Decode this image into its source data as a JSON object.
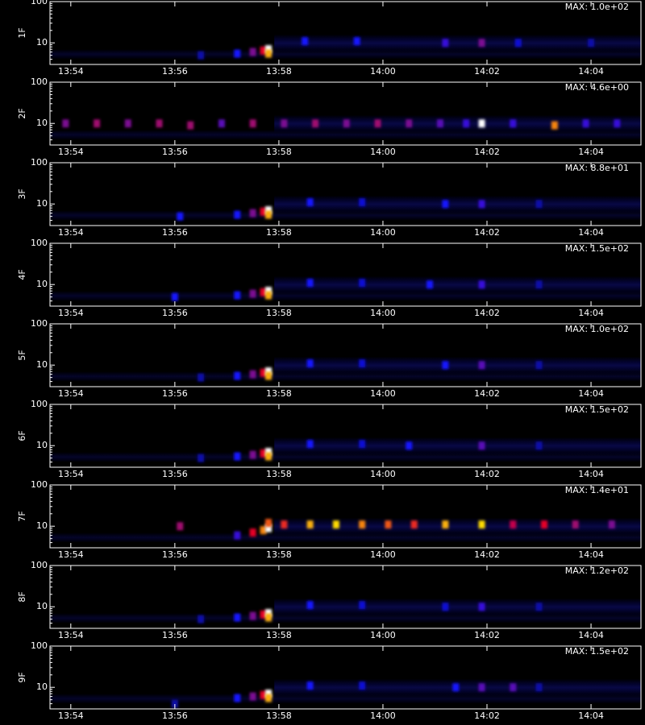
{
  "chart_data": [
    {
      "type": "heatmap",
      "ylabel": "1F",
      "annotation": "MAX: 1.0e+02",
      "ylog": true,
      "ylim": [
        3,
        100
      ],
      "yticks": [
        10,
        100
      ],
      "xlim": [
        833.6,
        844.96
      ],
      "xticks": [
        {
          "value": 834,
          "label": "13:54"
        },
        {
          "value": 836,
          "label": "13:56"
        },
        {
          "value": 838,
          "label": "13:58"
        },
        {
          "value": 840,
          "label": "14:00"
        },
        {
          "value": 842,
          "label": "14:02"
        },
        {
          "value": 844,
          "label": "14:04"
        }
      ],
      "x": [
        836.5,
        837.2,
        837.5,
        837.7,
        837.8,
        837.8,
        838.5,
        839.5,
        841.2,
        841.9,
        842.6,
        844.0
      ],
      "y": [
        5,
        5.5,
        6,
        6.5,
        7,
        5.5,
        11,
        11,
        10,
        10,
        10,
        10
      ],
      "values": [
        0.2,
        0.3,
        0.45,
        0.6,
        1,
        0.8,
        0.3,
        0.3,
        0.35,
        0.45,
        0.25,
        0.2
      ]
    },
    {
      "type": "heatmap",
      "ylabel": "2F",
      "annotation": "MAX: 4.6e+00",
      "ylog": true,
      "ylim": [
        3,
        100
      ],
      "yticks": [
        10,
        100
      ],
      "xlim": [
        833.6,
        844.96
      ],
      "xticks": [
        {
          "value": 834,
          "label": "13:54"
        },
        {
          "value": 836,
          "label": "13:56"
        },
        {
          "value": 838,
          "label": "13:58"
        },
        {
          "value": 840,
          "label": "14:00"
        },
        {
          "value": 842,
          "label": "14:02"
        },
        {
          "value": 844,
          "label": "14:04"
        }
      ],
      "x": [
        833.9,
        834.5,
        835.1,
        835.7,
        836.3,
        836.9,
        837.5,
        838.1,
        838.7,
        839.3,
        839.9,
        840.5,
        841.1,
        841.6,
        841.9,
        842.5,
        843.3,
        843.9,
        844.5
      ],
      "y": [
        10,
        10,
        10,
        10,
        9,
        10,
        10,
        10,
        10,
        10,
        10,
        10,
        10,
        10,
        10,
        10,
        9,
        10,
        10
      ],
      "values": [
        0.45,
        0.5,
        0.45,
        0.5,
        0.5,
        0.4,
        0.5,
        0.45,
        0.5,
        0.45,
        0.5,
        0.45,
        0.4,
        0.35,
        1,
        0.35,
        0.75,
        0.35,
        0.35
      ]
    },
    {
      "type": "heatmap",
      "ylabel": "3F",
      "annotation": "MAX: 8.8e+01",
      "ylog": true,
      "ylim": [
        3,
        100
      ],
      "yticks": [
        10,
        100
      ],
      "xlim": [
        833.6,
        844.96
      ],
      "xticks": [
        {
          "value": 834,
          "label": "13:54"
        },
        {
          "value": 836,
          "label": "13:56"
        },
        {
          "value": 838,
          "label": "13:58"
        },
        {
          "value": 840,
          "label": "14:00"
        },
        {
          "value": 842,
          "label": "14:02"
        },
        {
          "value": 844,
          "label": "14:04"
        }
      ],
      "x": [
        836.1,
        837.2,
        837.5,
        837.7,
        837.8,
        837.8,
        838.6,
        839.6,
        841.2,
        841.9,
        843.0
      ],
      "y": [
        5,
        5.5,
        6,
        6.5,
        7,
        5.5,
        11,
        11,
        10,
        10,
        10
      ],
      "values": [
        0.3,
        0.3,
        0.45,
        0.6,
        1,
        0.8,
        0.3,
        0.25,
        0.3,
        0.35,
        0.2
      ]
    },
    {
      "type": "heatmap",
      "ylabel": "4F",
      "annotation": "MAX: 1.5e+02",
      "ylog": true,
      "ylim": [
        3,
        100
      ],
      "yticks": [
        10,
        100
      ],
      "xlim": [
        833.6,
        844.96
      ],
      "xticks": [
        {
          "value": 834,
          "label": "13:54"
        },
        {
          "value": 836,
          "label": "13:56"
        },
        {
          "value": 838,
          "label": "13:58"
        },
        {
          "value": 840,
          "label": "14:00"
        },
        {
          "value": 842,
          "label": "14:02"
        },
        {
          "value": 844,
          "label": "14:04"
        }
      ],
      "x": [
        836.0,
        837.2,
        837.5,
        837.7,
        837.8,
        837.8,
        838.6,
        839.6,
        840.9,
        841.9,
        843.0
      ],
      "y": [
        5,
        5.5,
        6,
        6.5,
        7,
        5.5,
        11,
        11,
        10,
        10,
        10
      ],
      "values": [
        0.3,
        0.3,
        0.45,
        0.6,
        1,
        0.8,
        0.3,
        0.25,
        0.3,
        0.35,
        0.2
      ]
    },
    {
      "type": "heatmap",
      "ylabel": "5F",
      "annotation": "MAX: 1.0e+02",
      "ylog": true,
      "ylim": [
        3,
        100
      ],
      "yticks": [
        10,
        100
      ],
      "xlim": [
        833.6,
        844.96
      ],
      "xticks": [
        {
          "value": 834,
          "label": "13:54"
        },
        {
          "value": 836,
          "label": "13:56"
        },
        {
          "value": 838,
          "label": "13:58"
        },
        {
          "value": 840,
          "label": "14:00"
        },
        {
          "value": 842,
          "label": "14:02"
        },
        {
          "value": 844,
          "label": "14:04"
        }
      ],
      "x": [
        836.5,
        837.2,
        837.5,
        837.7,
        837.8,
        837.8,
        838.6,
        839.6,
        841.2,
        841.9,
        843.0
      ],
      "y": [
        5,
        5.5,
        6,
        6.5,
        7,
        5.5,
        11,
        11,
        10,
        10,
        10
      ],
      "values": [
        0.2,
        0.3,
        0.45,
        0.6,
        1,
        0.8,
        0.3,
        0.25,
        0.3,
        0.4,
        0.2
      ]
    },
    {
      "type": "heatmap",
      "ylabel": "6F",
      "annotation": "MAX: 1.5e+02",
      "ylog": true,
      "ylim": [
        3,
        100
      ],
      "yticks": [
        10,
        100
      ],
      "xlim": [
        833.6,
        844.96
      ],
      "xticks": [
        {
          "value": 834,
          "label": "13:54"
        },
        {
          "value": 836,
          "label": "13:56"
        },
        {
          "value": 838,
          "label": "13:58"
        },
        {
          "value": 840,
          "label": "14:00"
        },
        {
          "value": 842,
          "label": "14:02"
        },
        {
          "value": 844,
          "label": "14:04"
        }
      ],
      "x": [
        836.5,
        837.2,
        837.5,
        837.7,
        837.8,
        837.8,
        838.6,
        839.6,
        840.5,
        841.9,
        843.0
      ],
      "y": [
        5,
        5.5,
        6,
        6.5,
        7,
        5.5,
        11,
        11,
        10,
        10,
        10
      ],
      "values": [
        0.2,
        0.3,
        0.45,
        0.6,
        1,
        0.8,
        0.3,
        0.25,
        0.3,
        0.4,
        0.2
      ]
    },
    {
      "type": "heatmap",
      "ylabel": "7F",
      "annotation": "MAX: 1.4e+01",
      "ylog": true,
      "ylim": [
        3,
        100
      ],
      "yticks": [
        10,
        100
      ],
      "xlim": [
        833.6,
        844.96
      ],
      "xticks": [
        {
          "value": 834,
          "label": "13:54"
        },
        {
          "value": 836,
          "label": "13:56"
        },
        {
          "value": 838,
          "label": "13:58"
        },
        {
          "value": 840,
          "label": "14:00"
        },
        {
          "value": 842,
          "label": "14:02"
        },
        {
          "value": 844,
          "label": "14:04"
        }
      ],
      "x": [
        836.1,
        837.2,
        837.5,
        837.7,
        837.8,
        837.8,
        838.1,
        838.6,
        839.1,
        839.6,
        840.1,
        840.6,
        841.2,
        841.9,
        842.5,
        843.1,
        843.7,
        844.4
      ],
      "y": [
        10,
        6,
        7,
        8,
        9,
        12,
        11,
        11,
        11,
        11,
        11,
        11,
        11,
        11,
        11,
        11,
        11,
        11
      ],
      "values": [
        0.5,
        0.35,
        0.6,
        0.75,
        1,
        0.7,
        0.65,
        0.8,
        0.85,
        0.75,
        0.7,
        0.65,
        0.8,
        0.85,
        0.55,
        0.6,
        0.5,
        0.45
      ]
    },
    {
      "type": "heatmap",
      "ylabel": "8F",
      "annotation": "MAX: 1.2e+02",
      "ylog": true,
      "ylim": [
        3,
        100
      ],
      "yticks": [
        10,
        100
      ],
      "xlim": [
        833.6,
        844.96
      ],
      "xticks": [
        {
          "value": 834,
          "label": "13:54"
        },
        {
          "value": 836,
          "label": "13:56"
        },
        {
          "value": 838,
          "label": "13:58"
        },
        {
          "value": 840,
          "label": "14:00"
        },
        {
          "value": 842,
          "label": "14:02"
        },
        {
          "value": 844,
          "label": "14:04"
        }
      ],
      "x": [
        836.5,
        837.2,
        837.5,
        837.7,
        837.8,
        837.8,
        838.6,
        839.6,
        841.2,
        841.9,
        843.0
      ],
      "y": [
        5,
        5.5,
        6,
        6.5,
        7,
        5.5,
        11,
        11,
        10,
        10,
        10
      ],
      "values": [
        0.2,
        0.3,
        0.45,
        0.6,
        1,
        0.8,
        0.3,
        0.25,
        0.25,
        0.35,
        0.2
      ]
    },
    {
      "type": "heatmap",
      "ylabel": "9F",
      "annotation": "MAX: 1.5e+02",
      "ylog": true,
      "ylim": [
        3,
        100
      ],
      "yticks": [
        10,
        100
      ],
      "xlim": [
        833.6,
        844.96
      ],
      "xticks": [
        {
          "value": 834,
          "label": "13:54"
        },
        {
          "value": 836,
          "label": "13:56"
        },
        {
          "value": 838,
          "label": "13:58"
        },
        {
          "value": 840,
          "label": "14:00"
        },
        {
          "value": 842,
          "label": "14:02"
        },
        {
          "value": 844,
          "label": "14:04"
        }
      ],
      "x": [
        836.0,
        837.2,
        837.5,
        837.7,
        837.8,
        837.8,
        838.6,
        839.6,
        841.4,
        841.9,
        842.5,
        843.0
      ],
      "y": [
        4,
        5.5,
        6,
        6.5,
        7,
        5.5,
        11,
        11,
        10,
        10,
        10,
        10
      ],
      "values": [
        0.2,
        0.3,
        0.45,
        0.6,
        1,
        0.8,
        0.3,
        0.25,
        0.3,
        0.4,
        0.4,
        0.2
      ]
    }
  ]
}
